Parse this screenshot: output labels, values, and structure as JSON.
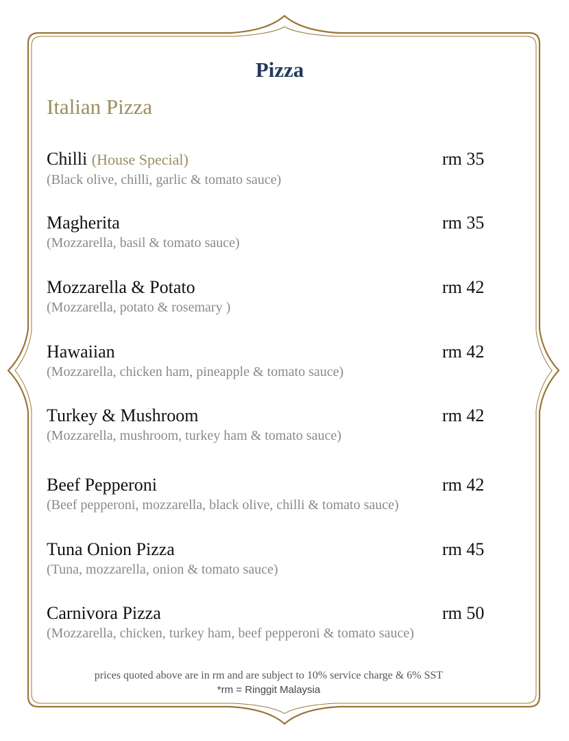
{
  "title": "Pizza",
  "section": "Italian Pizza",
  "colors": {
    "title": "#243a5e",
    "accent": "#9a8d5e",
    "frame": "#9a7536",
    "description": "#8a8a8a"
  },
  "items": [
    {
      "name": "Chilli",
      "tag": "(House Special)",
      "price": "rm 35",
      "desc": "(Black olive, chilli, garlic & tomato sauce)"
    },
    {
      "name": "Magherita",
      "tag": "",
      "price": "rm 35",
      "desc": "(Mozzarella, basil & tomato sauce)"
    },
    {
      "name": "Mozzarella & Potato",
      "tag": "",
      "price": "rm 42",
      "desc": "(Mozzarella, potato & rosemary )"
    },
    {
      "name": "Hawaiian",
      "tag": "",
      "price": "rm 42",
      "desc": "(Mozzarella, chicken ham, pineapple & tomato sauce)"
    },
    {
      "name": "Turkey & Mushroom",
      "tag": "",
      "price": "rm 42",
      "desc": "(Mozzarella, mushroom, turkey ham & tomato sauce)"
    },
    {
      "name": "Beef Pepperoni",
      "tag": "",
      "price": "rm 42",
      "desc": "(Beef pepperoni, mozzarella, black olive, chilli & tomato sauce)"
    },
    {
      "name": "Tuna Onion Pizza",
      "tag": "",
      "price": "rm 45",
      "desc": "(Tuna, mozzarella, onion & tomato sauce)"
    },
    {
      "name": "Carnivora Pizza",
      "tag": "",
      "price": "rm 50",
      "desc": "(Mozzarella, chicken, turkey ham, beef pepperoni & tomato sauce)"
    }
  ],
  "footer": {
    "note": "prices quoted above are in rm and are subject to 10% service charge & 6% SST",
    "currency_note": "*rm = Ringgit Malaysia"
  }
}
